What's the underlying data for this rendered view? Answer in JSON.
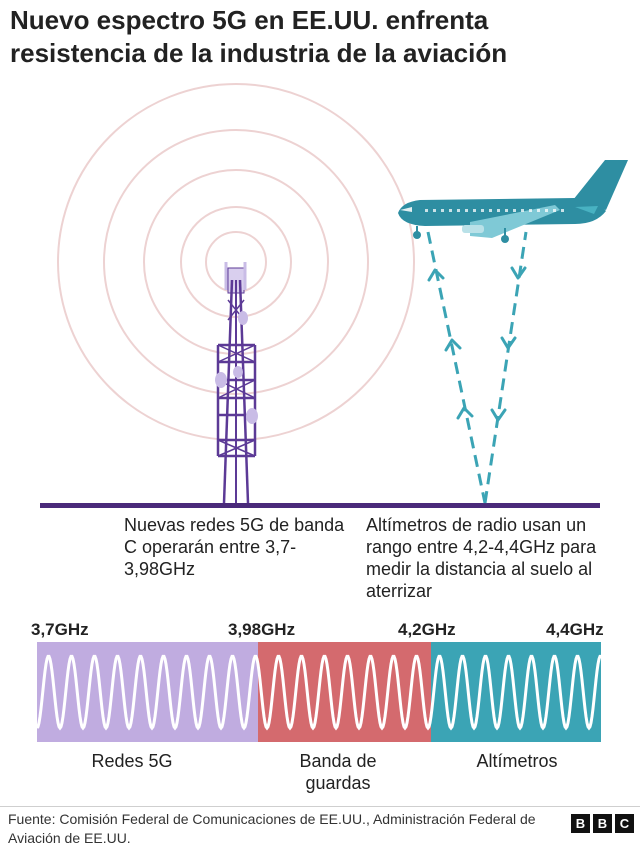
{
  "title": "Nuevo espectro 5G en EE.UU. enfrenta resistencia de la industria de la aviación",
  "captions": {
    "tower": "Nuevas redes 5G de banda C operarán entre 3,7-3,98GHz",
    "altimeter": "Altímetros de radio usan un rango entre 4,2-4,4GHz para medir la distancia al suelo al aterrizar"
  },
  "frequencies": [
    "3,7GHz",
    "3,98GHz",
    "4,2GHz",
    "4,4GHz"
  ],
  "bands": [
    {
      "label": "Redes 5G",
      "color": "#c0ace0"
    },
    {
      "label": "Banda de guardas",
      "color": "#d46a6e"
    },
    {
      "label": "Altímetros",
      "color": "#3ba4b5"
    }
  ],
  "source": "Fuente: Comisión Federal de Comunicaciones de EE.UU., Administración Federal de Aviación de EE.UU.",
  "logo": [
    "B",
    "B",
    "C"
  ],
  "colors": {
    "tower": "#5c3a96",
    "ground": "#4a2a7a",
    "signal_rings": "#edd2d2",
    "plane": "#2e8ea2",
    "radar_path": "#3ba4b5"
  }
}
